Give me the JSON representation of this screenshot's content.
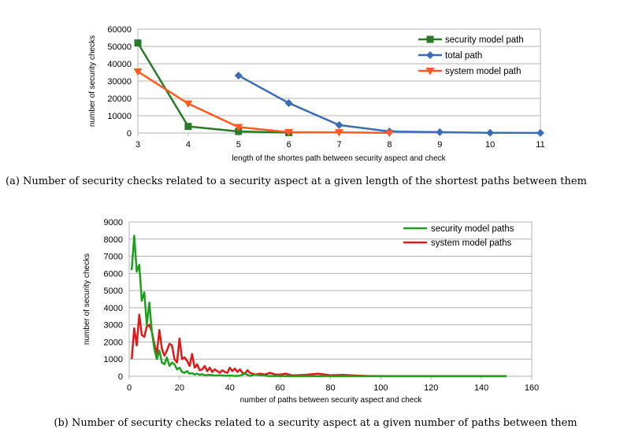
{
  "chart_data": [
    {
      "type": "line",
      "xlabel": "length of the shortes path between security aspect and check",
      "ylabel": "number of security checks",
      "x_ticks": [
        "3",
        "4",
        "5",
        "6",
        "7",
        "8",
        "9",
        "10",
        "11"
      ],
      "y_ticks": [
        "0",
        "10000",
        "20000",
        "30000",
        "40000",
        "50000",
        "60000"
      ],
      "ylim": [
        0,
        60000
      ],
      "x_categories": [
        3,
        4,
        5,
        6,
        7,
        8,
        9,
        10,
        11
      ],
      "grid": "horizontal",
      "legend_position": "top-right",
      "series": [
        {
          "name": "security model path",
          "color": "#2a7a2a",
          "marker": "square",
          "x": [
            3,
            4,
            5,
            6
          ],
          "y": [
            52000,
            3800,
            900,
            200
          ]
        },
        {
          "name": "total path",
          "color": "#3b6db3",
          "marker": "diamond",
          "x": [
            5,
            6,
            7,
            8,
            9,
            10,
            11
          ],
          "y": [
            33200,
            17300,
            4600,
            900,
            500,
            100,
            50
          ]
        },
        {
          "name": "system model path",
          "color": "#ff5a1f",
          "marker": "triangle-down",
          "x": [
            3,
            4,
            5,
            6,
            7,
            8
          ],
          "y": [
            35500,
            17000,
            3400,
            500,
            400,
            50
          ]
        }
      ],
      "caption": "(a) Number of security checks related to a security aspect at a given length of the shortest paths between them"
    },
    {
      "type": "line",
      "xlabel": "number of paths between security aspect and check",
      "ylabel": "number of security checks",
      "x_ticks": [
        "0",
        "20",
        "40",
        "60",
        "80",
        "100",
        "120",
        "140",
        "160"
      ],
      "y_ticks": [
        "0",
        "1000",
        "2000",
        "3000",
        "4000",
        "5000",
        "6000",
        "7000",
        "8000",
        "9000"
      ],
      "xlim": [
        0,
        160
      ],
      "ylim": [
        0,
        9000
      ],
      "grid": "horizontal",
      "legend_position": "top-right",
      "series": [
        {
          "name": "security model paths",
          "color": "#1ea01e",
          "x": [
            1,
            2,
            3,
            4,
            5,
            6,
            7,
            8,
            9,
            10,
            11,
            12,
            13,
            14,
            15,
            16,
            17,
            18,
            19,
            20,
            21,
            22,
            23,
            24,
            25,
            26,
            27,
            28,
            29,
            30,
            32,
            34,
            36,
            38,
            40,
            42,
            44,
            46,
            48,
            50,
            55,
            60,
            70,
            80,
            90,
            100,
            110,
            120,
            130,
            140,
            150
          ],
          "y": [
            6200,
            8200,
            6100,
            6500,
            4400,
            4900,
            3000,
            4300,
            2600,
            1600,
            1000,
            1500,
            800,
            700,
            1100,
            600,
            800,
            700,
            400,
            500,
            250,
            200,
            300,
            150,
            180,
            100,
            150,
            80,
            120,
            60,
            80,
            40,
            60,
            30,
            40,
            20,
            30,
            150,
            20,
            100,
            20,
            10,
            5,
            5,
            5,
            5,
            5,
            5,
            5,
            5,
            5
          ]
        },
        {
          "name": "system model paths",
          "color": "#e01818",
          "x": [
            1,
            2,
            3,
            4,
            5,
            6,
            7,
            8,
            9,
            10,
            11,
            12,
            13,
            14,
            15,
            16,
            17,
            18,
            19,
            20,
            21,
            22,
            23,
            24,
            25,
            26,
            27,
            28,
            29,
            30,
            31,
            32,
            33,
            34,
            35,
            36,
            37,
            38,
            39,
            40,
            41,
            42,
            43,
            44,
            45,
            46,
            47,
            48,
            49,
            50,
            52,
            54,
            56,
            58,
            60,
            62,
            65,
            70,
            75,
            80,
            85,
            90,
            95,
            100,
            110,
            120,
            130,
            140,
            150
          ],
          "y": [
            1000,
            2800,
            1800,
            3600,
            2400,
            2300,
            2900,
            3000,
            2600,
            1900,
            1300,
            2700,
            1600,
            1200,
            1500,
            1900,
            1800,
            1000,
            800,
            2200,
            1000,
            1100,
            900,
            600,
            1300,
            500,
            700,
            350,
            400,
            600,
            300,
            500,
            250,
            400,
            300,
            200,
            350,
            250,
            200,
            500,
            300,
            450,
            250,
            400,
            200,
            150,
            350,
            200,
            150,
            100,
            150,
            100,
            200,
            100,
            100,
            150,
            50,
            80,
            150,
            60,
            80,
            40,
            20,
            10,
            5,
            5,
            5,
            5,
            5
          ]
        }
      ],
      "caption": "(b) Number of security checks related to a security aspect at a given number of paths between them"
    }
  ]
}
